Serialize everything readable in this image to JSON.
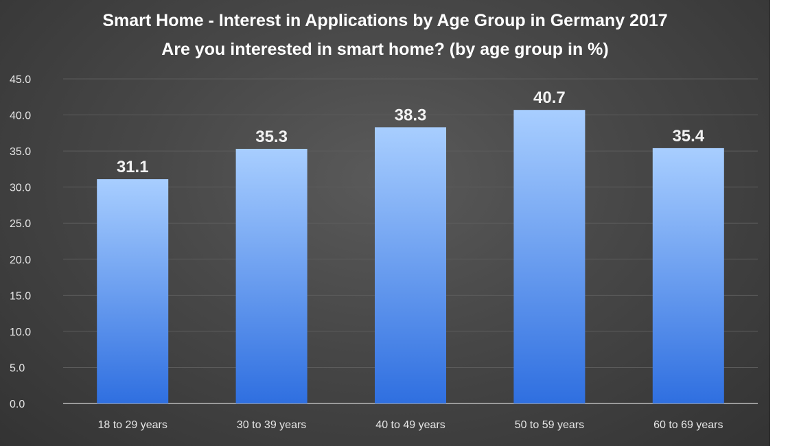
{
  "chart_data": {
    "type": "bar",
    "title": "Smart Home - Interest in Applications by Age Group in Germany 2017",
    "subtitle": "Are you interested in smart home? (by age group in %)",
    "xlabel": "",
    "ylabel": "",
    "categories": [
      "18 to 29 years",
      "30 to 39 years",
      "40 to 49 years",
      "50 to 59 years",
      "60 to 69 years"
    ],
    "values": [
      31.1,
      35.3,
      38.3,
      40.7,
      35.4
    ],
    "value_labels": [
      "31.1",
      "35.3",
      "38.3",
      "40.7",
      "35.4"
    ],
    "ylim": [
      0,
      45
    ],
    "yticks": [
      "0.0",
      "5.0",
      "10.0",
      "15.0",
      "20.0",
      "25.0",
      "30.0",
      "35.0",
      "40.0",
      "45.0"
    ],
    "grid": true,
    "legend": "none",
    "colors": {
      "background": "#404040",
      "bar_top": "#a8ceff",
      "bar_bottom": "#2f6fe0",
      "gridline": "#5c5c5c",
      "text": "#ffffff"
    }
  }
}
